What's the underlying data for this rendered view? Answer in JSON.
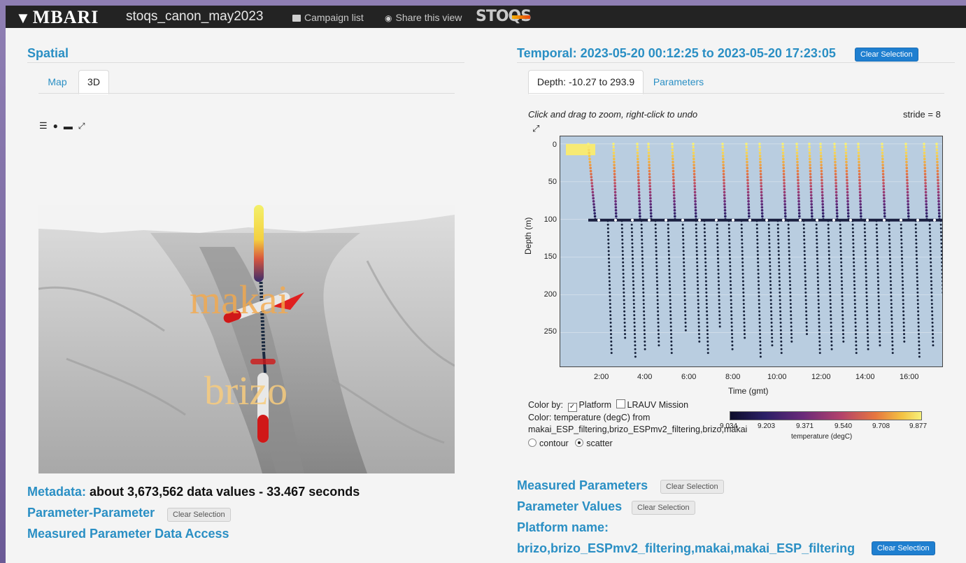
{
  "navbar": {
    "logo": "MBARI",
    "campaign": "stoqs_canon_may2023",
    "campaign_list": "Campaign list",
    "share": "Share this view",
    "stoqs_logo": "STOQS"
  },
  "spatial": {
    "title": "Spatial",
    "tabs": [
      "Map",
      "3D"
    ],
    "active_tab": "3D",
    "labels": [
      "makai",
      "brizo"
    ]
  },
  "temporal": {
    "title": "Temporal: 2023-05-20 00:12:25 to 2023-05-20 17:23:05",
    "clear": "Clear Selection",
    "tabs": [
      "Depth: -10.27 to 293.9",
      "Parameters"
    ],
    "hint": "Click and drag to zoom, right-click to undo",
    "stride": "stride = 8"
  },
  "chart_data": {
    "type": "scatter",
    "xlabel": "Time (gmt)",
    "ylabel": "Depth (m)",
    "x_ticks": [
      "2:00",
      "4:00",
      "6:00",
      "8:00",
      "10:00",
      "12:00",
      "14:00",
      "16:00"
    ],
    "y_ticks": [
      "0",
      "50",
      "100",
      "150",
      "200",
      "250"
    ],
    "ylim": [
      295,
      -10
    ],
    "colorbar": {
      "label": "temperature (degC)",
      "ticks": [
        "9.034",
        "9.203",
        "9.371",
        "9.540",
        "9.708",
        "9.877"
      ]
    }
  },
  "colorby": {
    "label": "Color by:",
    "platform": "Platform",
    "mission": "LRAUV Mission",
    "color_line1": "Color: temperature (degC) from",
    "color_line2": "makai_ESP_filtering,brizo_ESPmv2_filtering,brizo,makai",
    "contour": "contour",
    "scatter": "scatter"
  },
  "bottom_left": {
    "metadata_label": "Metadata:",
    "metadata_value": "about 3,673,562 data values - 33.467 seconds",
    "param_param": "Parameter-Parameter",
    "clear": "Clear Selection",
    "data_access": "Measured Parameter Data Access"
  },
  "bottom_right": {
    "measured": "Measured Parameters",
    "values": "Parameter Values",
    "platform_label": "Platform name:",
    "platform_value": "brizo,brizo_ESPmv2_filtering,makai,makai_ESP_filtering",
    "clear": "Clear Selection"
  }
}
